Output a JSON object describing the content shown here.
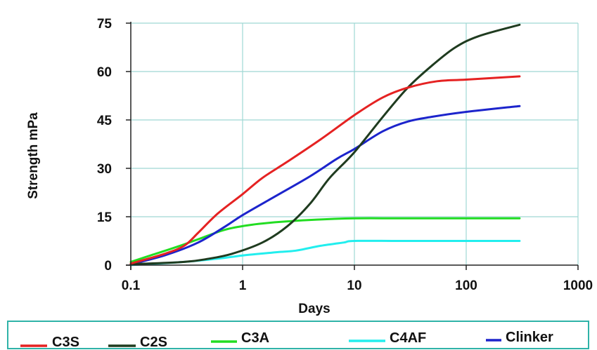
{
  "chart_data": {
    "type": "line",
    "title": "",
    "xlabel": "Days",
    "ylabel": "Strength mPa",
    "x_scale": "log",
    "xlim": [
      0.1,
      1000
    ],
    "ylim": [
      0,
      75
    ],
    "x_ticks": [
      0.1,
      1,
      10,
      100,
      1000
    ],
    "x_tick_labels": [
      "0.1",
      "1",
      "10",
      "100",
      "1000"
    ],
    "y_ticks": [
      0,
      15,
      30,
      45,
      60,
      75
    ],
    "y_tick_labels": [
      "0",
      "15",
      "30",
      "45",
      "60",
      "75"
    ],
    "grid": true,
    "legend_position": "bottom",
    "colors": {
      "grid": "#9fd8d4",
      "axis": "#222222",
      "legend_border": "#2fb3a8"
    },
    "series": [
      {
        "name": "C3S",
        "color": "#e52222",
        "points": [
          [
            0.1,
            0.5
          ],
          [
            0.2,
            3.5
          ],
          [
            0.3,
            6
          ],
          [
            0.4,
            10
          ],
          [
            0.6,
            16
          ],
          [
            1,
            22
          ],
          [
            1.5,
            27
          ],
          [
            2.5,
            32
          ],
          [
            5,
            39
          ],
          [
            10,
            46.5
          ],
          [
            18,
            52
          ],
          [
            30,
            55
          ],
          [
            55,
            57
          ],
          [
            100,
            57.5
          ],
          [
            300,
            58.5
          ]
        ]
      },
      {
        "name": "C2S",
        "color": "#1f3b1f",
        "points": [
          [
            0.1,
            0.3
          ],
          [
            0.3,
            1
          ],
          [
            0.5,
            2
          ],
          [
            0.8,
            3.5
          ],
          [
            1.5,
            7
          ],
          [
            2.5,
            12
          ],
          [
            4,
            19
          ],
          [
            6,
            27
          ],
          [
            10,
            35
          ],
          [
            18,
            46
          ],
          [
            30,
            55
          ],
          [
            50,
            62
          ],
          [
            80,
            67.5
          ],
          [
            130,
            71
          ],
          [
            300,
            74.5
          ]
        ]
      },
      {
        "name": "C3A",
        "color": "#22dd22",
        "points": [
          [
            0.1,
            1
          ],
          [
            0.15,
            3
          ],
          [
            0.25,
            5.5
          ],
          [
            0.4,
            8
          ],
          [
            0.7,
            11
          ],
          [
            1.2,
            12.5
          ],
          [
            2,
            13.3
          ],
          [
            4,
            14
          ],
          [
            10,
            14.5
          ],
          [
            30,
            14.5
          ],
          [
            300,
            14.5
          ]
        ]
      },
      {
        "name": "C4AF",
        "color": "#22eeee",
        "points": [
          [
            0.1,
            0
          ],
          [
            0.3,
            1
          ],
          [
            0.6,
            2
          ],
          [
            1,
            3
          ],
          [
            2,
            4
          ],
          [
            3,
            4.5
          ],
          [
            5,
            6
          ],
          [
            8,
            7
          ],
          [
            10,
            7.5
          ],
          [
            30,
            7.5
          ],
          [
            300,
            7.5
          ]
        ]
      },
      {
        "name": "Clinker",
        "color": "#1c24cc",
        "points": [
          [
            0.1,
            0.3
          ],
          [
            0.2,
            3
          ],
          [
            0.4,
            7
          ],
          [
            0.7,
            12
          ],
          [
            1,
            15.5
          ],
          [
            2,
            21.5
          ],
          [
            4,
            27.5
          ],
          [
            7,
            33
          ],
          [
            10,
            36
          ],
          [
            18,
            41.5
          ],
          [
            30,
            44.5
          ],
          [
            50,
            46
          ],
          [
            100,
            47.5
          ],
          [
            300,
            49.3
          ]
        ]
      }
    ]
  }
}
